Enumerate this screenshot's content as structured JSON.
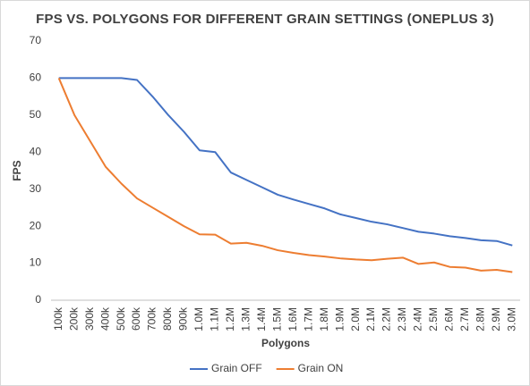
{
  "chart_data": {
    "type": "line",
    "title": "FPS VS. POLYGONS FOR DIFFERENT GRAIN SETTINGS (ONEPLUS 3)",
    "x_label": "Polygons",
    "y_label": "FPS",
    "categories": [
      "100k",
      "200k",
      "300k",
      "400k",
      "500k",
      "600k",
      "700k",
      "800k",
      "900k",
      "1.0M",
      "1.1M",
      "1.2M",
      "1.3M",
      "1.4M",
      "1.5M",
      "1.6M",
      "1.7M",
      "1.8M",
      "1.9M",
      "2.0M",
      "2.1M",
      "2.2M",
      "2.3M",
      "2.4M",
      "2.5M",
      "2.6M",
      "2.7M",
      "2.8M",
      "2.9M",
      "3.0M"
    ],
    "series": [
      {
        "name": "Grain OFF",
        "color": "#4472c4",
        "values": [
          60,
          60,
          60,
          60,
          60,
          59.5,
          55,
          50,
          45.5,
          40.5,
          40,
          34.5,
          32.5,
          30.5,
          28.5,
          27.2,
          26,
          24.8,
          23.2,
          22.2,
          21.2,
          20.5,
          19.5,
          18.5,
          18,
          17.3,
          16.8,
          16.2,
          16,
          14.8
        ]
      },
      {
        "name": "Grain ON",
        "color": "#ed7d31",
        "values": [
          60,
          50,
          43,
          36,
          31.5,
          27.5,
          25,
          22.5,
          20,
          17.8,
          17.7,
          15.3,
          15.5,
          14.7,
          13.5,
          12.8,
          12.2,
          11.8,
          11.3,
          11,
          10.8,
          11.2,
          11.5,
          9.8,
          10.2,
          9,
          8.8,
          8,
          8.2,
          7.6
        ]
      }
    ],
    "ylim": [
      0,
      70
    ],
    "yticks": [
      0,
      10,
      20,
      30,
      40,
      50,
      60,
      70
    ],
    "grid": false,
    "legend": "bottom"
  }
}
